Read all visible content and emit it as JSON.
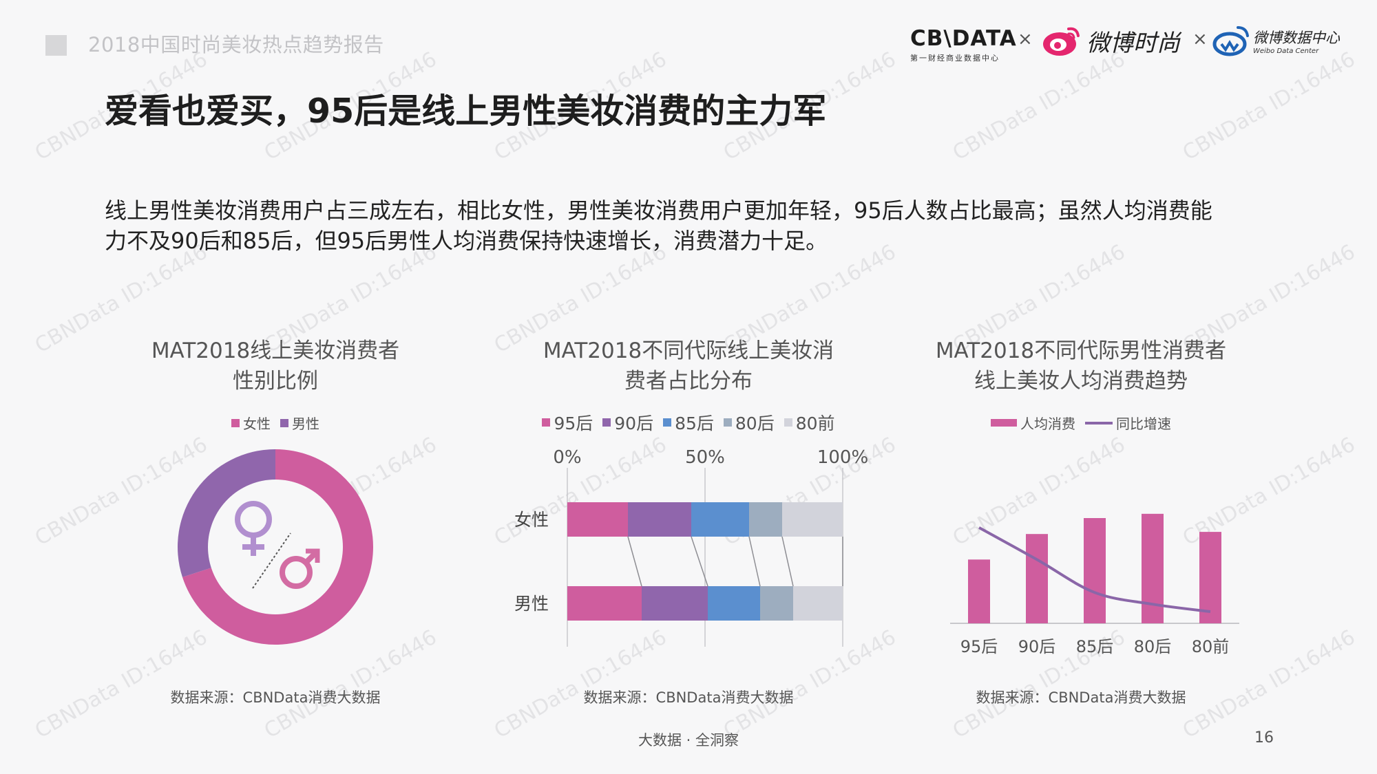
{
  "header": {
    "report_title": "2018中国时尚美妆热点趋势报告",
    "slide_title": "爱看也爱买，95后是线上男性美妆消费的主力军",
    "logos": {
      "cbn_main": "CB\\DATA",
      "cbn_sub": "第一财经商业数据中心",
      "weibo_fashion": "微博时尚",
      "weibo_data_cn": "微博数据中心",
      "weibo_data_en": "Weibo Data Center",
      "separator": "×"
    }
  },
  "intro": {
    "line1": "线上男性美妆消费用户占三成左右，相比女性，男性美妆消费用户更加年轻，95后人数占比最高；虽然人均消费能",
    "line2": "力不及90后和85后，但95后男性人均消费保持快速增长，消费潜力十足。"
  },
  "watermark": "CBNData ID:16446",
  "colors": {
    "pink": "#cf5d9e",
    "purple": "#9066ac",
    "blue": "#5b8fcf",
    "gray_blue": "#9dadbf",
    "light_gray": "#d2d3db"
  },
  "chart_data": [
    {
      "type": "pie",
      "title_line1": "MAT2018线上美妆消费者",
      "title_line2": "性别比例",
      "legend": [
        "女性",
        "男性"
      ],
      "series": [
        {
          "name": "女性",
          "value": 0.7,
          "color": "#cf5d9e"
        },
        {
          "name": "男性",
          "value": 0.3,
          "color": "#9066ac"
        }
      ],
      "donut": true,
      "source": "数据来源：CBNData消费大数据"
    },
    {
      "type": "bar",
      "stacked": true,
      "orientation": "horizontal",
      "title_line1": "MAT2018不同代际线上美妆消",
      "title_line2": "费者占比分布",
      "categories": [
        "女性",
        "男性"
      ],
      "x_ticks": [
        "0%",
        "50%",
        "100%"
      ],
      "xlim": [
        0,
        100
      ],
      "series": [
        {
          "name": "95后",
          "values": [
            22,
            27
          ],
          "color": "#cf5d9e"
        },
        {
          "name": "90后",
          "values": [
            23,
            24
          ],
          "color": "#9066ac"
        },
        {
          "name": "85后",
          "values": [
            21,
            19
          ],
          "color": "#5b8fcf"
        },
        {
          "name": "80后",
          "values": [
            12,
            12
          ],
          "color": "#9dadbf"
        },
        {
          "name": "80前",
          "values": [
            22,
            18
          ],
          "color": "#d2d3db"
        }
      ],
      "source": "数据来源：CBNData消费大数据"
    },
    {
      "type": "bar",
      "title_line1": "MAT2018不同代际男性消费者",
      "title_line2": "线上美妆人均消费趋势",
      "categories": [
        "95后",
        "90后",
        "85后",
        "80后",
        "80前"
      ],
      "series": [
        {
          "name": "人均消费",
          "kind": "bar",
          "values": [
            60,
            84,
            99,
            103,
            86
          ],
          "color": "#cf5d9e"
        },
        {
          "name": "同比增速",
          "kind": "line",
          "values": [
            90,
            60,
            29,
            18,
            11
          ],
          "color": "#8a66a8"
        }
      ],
      "ylim": [
        0,
        110
      ],
      "source": "数据来源：CBNData消费大数据"
    }
  ],
  "footer": {
    "tagline": "大数据 · 全洞察",
    "page_number": "16"
  }
}
